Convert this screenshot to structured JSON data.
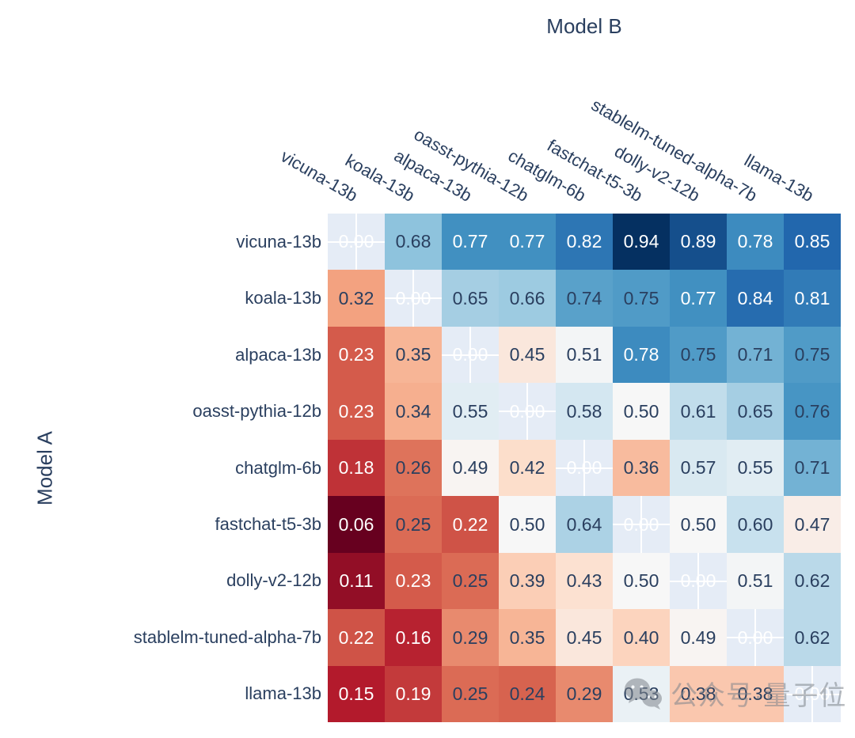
{
  "chart_data": {
    "type": "heatmap",
    "xlabel": "Model B",
    "ylabel": "Model A",
    "models": [
      "vicuna-13b",
      "koala-13b",
      "alpaca-13b",
      "oasst-pythia-12b",
      "chatglm-6b",
      "fastchat-t5-3b",
      "dolly-v2-12b",
      "stablelm-tuned-alpha-7b",
      "llama-13b"
    ],
    "matrix": [
      [
        0.0,
        0.68,
        0.77,
        0.77,
        0.82,
        0.94,
        0.89,
        0.78,
        0.85
      ],
      [
        0.32,
        0.0,
        0.65,
        0.66,
        0.74,
        0.75,
        0.77,
        0.84,
        0.81
      ],
      [
        0.23,
        0.35,
        0.0,
        0.45,
        0.51,
        0.78,
        0.75,
        0.71,
        0.75
      ],
      [
        0.23,
        0.34,
        0.55,
        0.0,
        0.58,
        0.5,
        0.61,
        0.65,
        0.76
      ],
      [
        0.18,
        0.26,
        0.49,
        0.42,
        0.0,
        0.36,
        0.57,
        0.55,
        0.71
      ],
      [
        0.06,
        0.25,
        0.22,
        0.5,
        0.64,
        0.0,
        0.5,
        0.6,
        0.47
      ],
      [
        0.11,
        0.23,
        0.25,
        0.39,
        0.43,
        0.5,
        0.0,
        0.51,
        0.62
      ],
      [
        0.22,
        0.16,
        0.29,
        0.35,
        0.45,
        0.4,
        0.49,
        0.0,
        0.62
      ],
      [
        0.15,
        0.19,
        0.25,
        0.24,
        0.29,
        0.53,
        0.38,
        0.38,
        0.0
      ]
    ],
    "value_decimals": 2,
    "zmin": 0.06,
    "zmax": 0.94,
    "colorscale": [
      "#67001f",
      "#b2182b",
      "#d6604d",
      "#f4a582",
      "#fddbc7",
      "#f7f7f7",
      "#d1e5f0",
      "#92c5de",
      "#4393c3",
      "#2166ac",
      "#053061"
    ],
    "white_text_thresholds": {
      "low": 0.23,
      "high": 0.77
    },
    "colors": {
      "label_text": "#2a3f5f",
      "cell_text_dark": "#2a3f5f",
      "cell_text_light": "#ffffff",
      "diagonal_bg": "#e5ecf6",
      "gridline": "#ffffff",
      "background": "#ffffff"
    },
    "colorbar": false,
    "legend": false
  },
  "watermark": {
    "icon": "wechat-icon",
    "text": "公众号·量子位"
  }
}
